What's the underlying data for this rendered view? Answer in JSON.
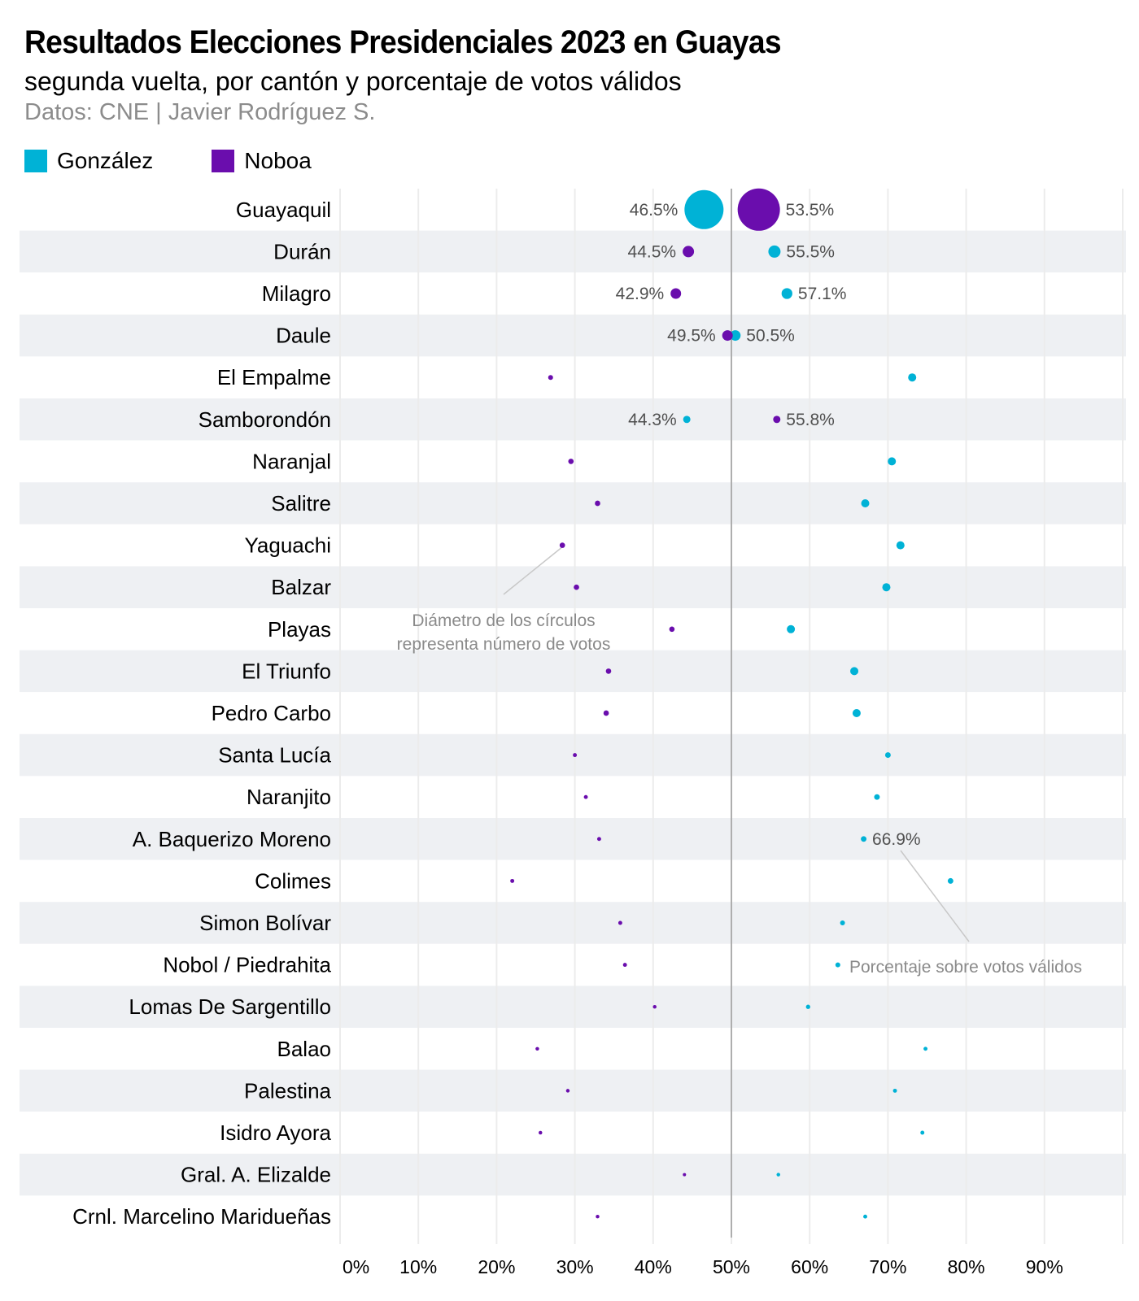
{
  "chart_data": {
    "type": "scatter",
    "title": "Resultados Elecciones Presidenciales 2023 en Guayas",
    "subtitle": "segunda vuelta, por cantón y porcentaje de votos válidos",
    "source": "Datos: CNE | Javier Rodríguez S.",
    "legend": [
      {
        "name": "González",
        "color": "#00b2d6"
      },
      {
        "name": "Noboa",
        "color": "#6a0dad"
      }
    ],
    "legend_position": "top-left",
    "xlim": [
      0,
      100
    ],
    "x_ticks": [
      "0%",
      "10%",
      "20%",
      "30%",
      "40%",
      "50%",
      "60%",
      "70%",
      "80%",
      "90%"
    ],
    "reference_line": 50,
    "grid": true,
    "size_encoding": "relative_votes",
    "annotations": {
      "size_note": [
        "Diámetro de los círculos",
        "representa número de votos"
      ],
      "pct_note": "Porcentaje sobre votos válidos"
    },
    "rows": [
      {
        "canton": "Guayaquil",
        "gonzalez": 46.5,
        "noboa": 53.5,
        "g_votes": 576,
        "n_votes": 676,
        "g_label": "46.5%",
        "n_label": "53.5%"
      },
      {
        "canton": "Durán",
        "gonzalez": 55.5,
        "noboa": 44.5,
        "g_votes": 56,
        "n_votes": 49,
        "g_label": "55.5%",
        "n_label": "44.5%"
      },
      {
        "canton": "Milagro",
        "gonzalez": 57.1,
        "noboa": 42.9,
        "g_votes": 44,
        "n_votes": 42,
        "g_label": "57.1%",
        "n_label": "42.9%"
      },
      {
        "canton": "Daule",
        "gonzalez": 50.5,
        "noboa": 49.5,
        "g_votes": 42,
        "n_votes": 42,
        "g_label": "50.5%",
        "n_label": "49.5%"
      },
      {
        "canton": "El Empalme",
        "gonzalez": 73.1,
        "noboa": 26.9,
        "g_votes": 25,
        "n_votes": 9
      },
      {
        "canton": "Samborondón",
        "gonzalez": 44.3,
        "noboa": 55.8,
        "g_votes": 20,
        "n_votes": 20,
        "g_label": "44.3%",
        "n_label": "55.8%"
      },
      {
        "canton": "Naranjal",
        "gonzalez": 70.5,
        "noboa": 29.5,
        "g_votes": 25,
        "n_votes": 11
      },
      {
        "canton": "Salitre",
        "gonzalez": 67.1,
        "noboa": 32.9,
        "g_votes": 25,
        "n_votes": 11
      },
      {
        "canton": "Yaguachi",
        "gonzalez": 71.6,
        "noboa": 28.4,
        "g_votes": 25,
        "n_votes": 11
      },
      {
        "canton": "Balzar",
        "gonzalez": 69.8,
        "noboa": 30.2,
        "g_votes": 25,
        "n_votes": 11
      },
      {
        "canton": "Playas",
        "gonzalez": 57.6,
        "noboa": 42.4,
        "g_votes": 25,
        "n_votes": 11
      },
      {
        "canton": "El Triunfo",
        "gonzalez": 65.7,
        "noboa": 34.3,
        "g_votes": 25,
        "n_votes": 11
      },
      {
        "canton": "Pedro Carbo",
        "gonzalez": 66.0,
        "noboa": 34.0,
        "g_votes": 25,
        "n_votes": 11
      },
      {
        "canton": "Santa Lucía",
        "gonzalez": 70.0,
        "noboa": 30.0,
        "g_votes": 12,
        "n_votes": 6
      },
      {
        "canton": "Naranjito",
        "gonzalez": 68.6,
        "noboa": 31.4,
        "g_votes": 12,
        "n_votes": 6
      },
      {
        "canton": "A. Baquerizo Moreno",
        "gonzalez": 66.9,
        "noboa": 33.1,
        "g_votes": 12,
        "n_votes": 6,
        "g_label": "66.9%"
      },
      {
        "canton": "Colimes",
        "gonzalez": 78.0,
        "noboa": 22.0,
        "g_votes": 12,
        "n_votes": 6
      },
      {
        "canton": "Simon Bolívar",
        "gonzalez": 64.2,
        "noboa": 35.8,
        "g_votes": 9,
        "n_votes": 6
      },
      {
        "canton": "Nobol / Piedrahita",
        "gonzalez": 63.6,
        "noboa": 36.4,
        "g_votes": 9,
        "n_votes": 6
      },
      {
        "canton": "Lomas De Sargentillo",
        "gonzalez": 59.8,
        "noboa": 40.2,
        "g_votes": 7,
        "n_votes": 5
      },
      {
        "canton": "Balao",
        "gonzalez": 74.8,
        "noboa": 25.2,
        "g_votes": 6,
        "n_votes": 5
      },
      {
        "canton": "Palestina",
        "gonzalez": 70.9,
        "noboa": 29.1,
        "g_votes": 6,
        "n_votes": 5
      },
      {
        "canton": "Isidro Ayora",
        "gonzalez": 74.4,
        "noboa": 25.6,
        "g_votes": 6,
        "n_votes": 5
      },
      {
        "canton": "Gral. A. Elizalde",
        "gonzalez": 56.0,
        "noboa": 44.0,
        "g_votes": 5,
        "n_votes": 4
      },
      {
        "canton": "Crnl. Marcelino Maridueñas",
        "gonzalez": 67.1,
        "noboa": 32.9,
        "g_votes": 6,
        "n_votes": 5
      }
    ]
  }
}
